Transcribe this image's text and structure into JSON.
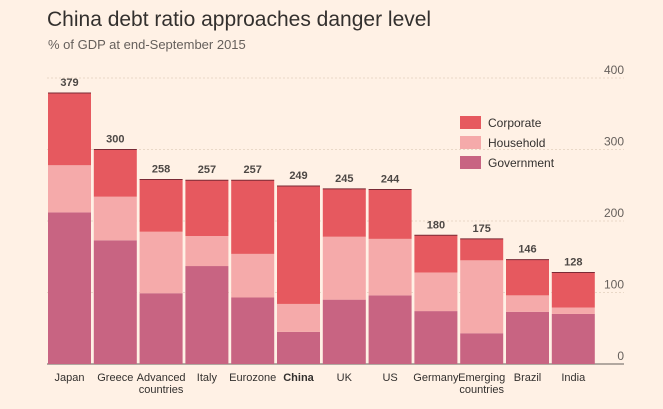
{
  "chart_data": {
    "type": "bar",
    "stacked": true,
    "title": "China debt ratio approaches danger level",
    "subtitle": "% of GDP at end-September 2015",
    "ylim": [
      0,
      400
    ],
    "yticks": [
      0,
      100,
      200,
      300,
      400
    ],
    "highlight": "China",
    "categories": [
      [
        "Japan"
      ],
      [
        "Greece"
      ],
      [
        "Advanced",
        "countries"
      ],
      [
        "Italy"
      ],
      [
        "Eurozone"
      ],
      [
        "China"
      ],
      [
        "UK"
      ],
      [
        "US"
      ],
      [
        "Germany"
      ],
      [
        "Emerging",
        "countries"
      ],
      [
        "Brazil"
      ],
      [
        "India"
      ]
    ],
    "totals": [
      379,
      300,
      258,
      257,
      257,
      249,
      245,
      244,
      180,
      175,
      146,
      128
    ],
    "series": [
      {
        "name": "Government",
        "color": "#c86482",
        "values": [
          212,
          173,
          99,
          137,
          93,
          45,
          90,
          96,
          74,
          43,
          73,
          70
        ]
      },
      {
        "name": "Household",
        "color": "#f5aaaa",
        "values": [
          66,
          61,
          86,
          42,
          61,
          39,
          88,
          79,
          54,
          102,
          23,
          9
        ]
      },
      {
        "name": "Corporate",
        "color": "#e6595f",
        "values": [
          101,
          66,
          73,
          78,
          103,
          165,
          67,
          69,
          52,
          30,
          50,
          49
        ]
      }
    ],
    "legend": [
      "Corporate",
      "Household",
      "Government"
    ]
  }
}
